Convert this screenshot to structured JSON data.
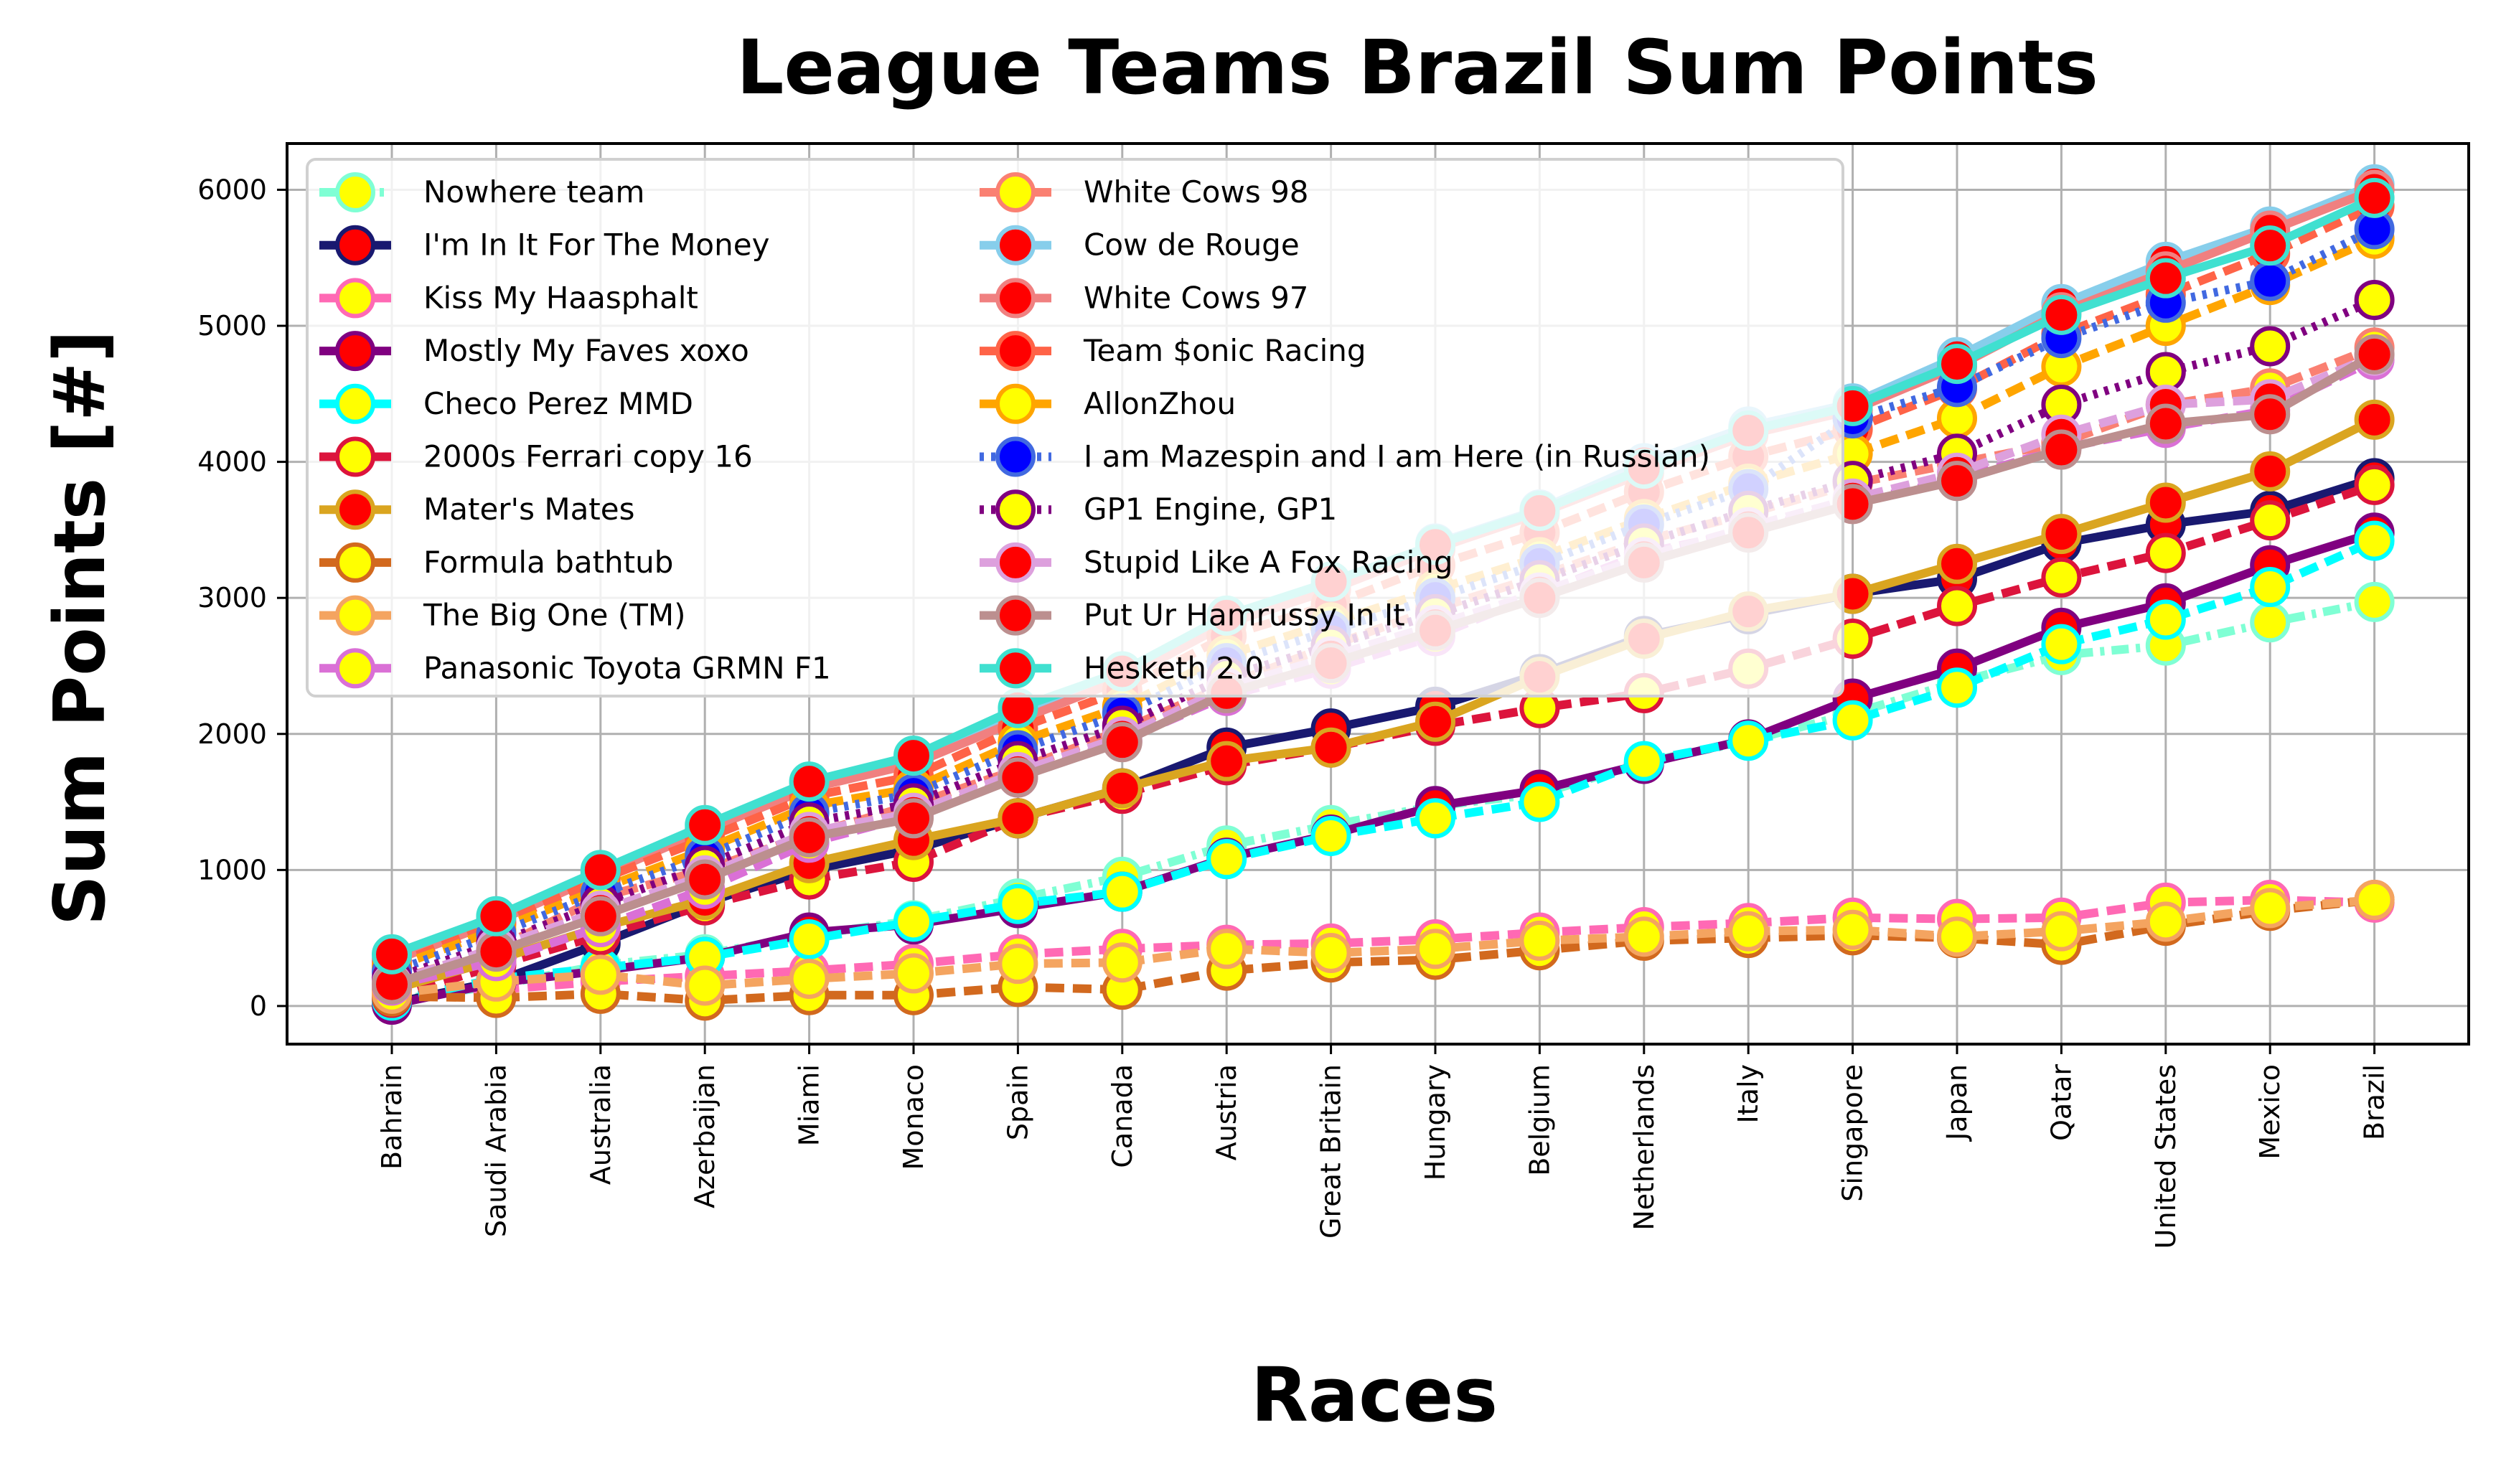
{
  "chart_data": {
    "type": "line",
    "title": "League Teams Brazil Sum Points",
    "xlabel": "Races",
    "ylabel": "Sum Points [#]",
    "ylim": [
      -280,
      6340
    ],
    "yticks": [
      0,
      1000,
      2000,
      3000,
      4000,
      5000,
      6000
    ],
    "grid": true,
    "legend": "upper-left, two columns",
    "categories": [
      "Bahrain",
      "Saudi Arabia",
      "Australia",
      "Azerbaijan",
      "Miami",
      "Monaco",
      "Spain",
      "Canada",
      "Austria",
      "Great Britain",
      "Hungary",
      "Belgium",
      "Netherlands",
      "Italy",
      "Singapore",
      "Japan",
      "Qatar",
      "United States",
      "Mexico",
      "Brazil"
    ],
    "series": [
      {
        "name": "Nowhere team",
        "color": "#7fffd4",
        "marker_face": "#ffff00",
        "marker_edge": "#7fffd4",
        "dash": "dashdot",
        "values": [
          40,
          150,
          300,
          380,
          520,
          630,
          790,
          950,
          1180,
          1330,
          1470,
          1560,
          1790,
          1950,
          2150,
          2380,
          2580,
          2650,
          2820,
          2970
        ]
      },
      {
        "name": "I'm In It For The Money",
        "color": "#191970",
        "marker_face": "#ff0000",
        "marker_edge": "#191970",
        "dash": "solid",
        "values": [
          20,
          180,
          460,
          760,
          1000,
          1150,
          1380,
          1600,
          1900,
          2040,
          2200,
          2440,
          2720,
          2880,
          3030,
          3140,
          3400,
          3540,
          3640,
          3880
        ]
      },
      {
        "name": "Kiss My Haasphalt",
        "color": "#ff69b4",
        "marker_face": "#ffff00",
        "marker_edge": "#ff69b4",
        "dash": "dashed",
        "values": [
          50,
          120,
          180,
          220,
          260,
          310,
          380,
          420,
          450,
          460,
          490,
          540,
          580,
          610,
          650,
          640,
          650,
          760,
          780,
          760
        ]
      },
      {
        "name": "Mostly My Faves xoxo",
        "color": "#800080",
        "marker_face": "#ff0000",
        "marker_edge": "#800080",
        "dash": "solid",
        "values": [
          10,
          170,
          260,
          360,
          540,
          600,
          720,
          840,
          1090,
          1260,
          1470,
          1590,
          1780,
          1960,
          2260,
          2480,
          2780,
          2960,
          3240,
          3480
        ]
      },
      {
        "name": "Checo Perez MMD",
        "color": "#00ffff",
        "marker_face": "#ffff00",
        "marker_edge": "#00ffff",
        "dash": "dashed",
        "values": [
          40,
          200,
          280,
          360,
          490,
          620,
          750,
          840,
          1080,
          1250,
          1380,
          1500,
          1800,
          1950,
          2100,
          2340,
          2660,
          2840,
          3080,
          3420
        ]
      },
      {
        "name": "2000s Ferrari copy 16",
        "color": "#dc143c",
        "marker_face": "#ffff00",
        "marker_edge": "#dc143c",
        "dash": "dashed",
        "values": [
          60,
          300,
          520,
          740,
          930,
          1060,
          1380,
          1560,
          1770,
          1900,
          2060,
          2190,
          2300,
          2480,
          2700,
          2940,
          3150,
          3330,
          3570,
          3830
        ]
      },
      {
        "name": "Mater's Mates",
        "color": "#daa520",
        "marker_face": "#ff0000",
        "marker_edge": "#daa520",
        "dash": "solid",
        "values": [
          120,
          340,
          580,
          780,
          1050,
          1220,
          1380,
          1600,
          1800,
          1900,
          2090,
          2420,
          2700,
          2900,
          3030,
          3250,
          3470,
          3700,
          3930,
          4310
        ]
      },
      {
        "name": "Formula bathtub",
        "color": "#d2691e",
        "marker_face": "#ffff00",
        "marker_edge": "#d2691e",
        "dash": "dashed",
        "values": [
          70,
          60,
          90,
          40,
          80,
          80,
          140,
          120,
          260,
          320,
          340,
          410,
          480,
          500,
          520,
          500,
          450,
          590,
          700,
          780
        ]
      },
      {
        "name": "The Big One (TM)",
        "color": "#f4a460",
        "marker_face": "#ffff00",
        "marker_edge": "#f4a460",
        "dash": "dashed",
        "values": [
          90,
          180,
          230,
          150,
          200,
          240,
          310,
          320,
          420,
          390,
          420,
          480,
          510,
          550,
          560,
          510,
          550,
          620,
          720,
          780
        ]
      },
      {
        "name": "Panasonic Toyota GRMN F1",
        "color": "#da70d6",
        "marker_face": "#ffff00",
        "marker_edge": "#da70d6",
        "dash": "dashed",
        "values": [
          150,
          330,
          580,
          860,
          1200,
          1400,
          1680,
          1950,
          2280,
          2480,
          2720,
          3030,
          3330,
          3490,
          3700,
          3870,
          4100,
          4250,
          4380,
          4750
        ]
      },
      {
        "name": "White Cows 98",
        "color": "#fa8072",
        "marker_face": "#ffff00",
        "marker_edge": "#fa8072",
        "dash": "dashed",
        "values": [
          180,
          420,
          800,
          1000,
          1260,
          1480,
          1740,
          2030,
          2360,
          2650,
          2920,
          3160,
          3420,
          3620,
          3840,
          3990,
          4140,
          4420,
          4540,
          4840
        ]
      },
      {
        "name": "Cow de Rouge",
        "color": "#87ceeb",
        "marker_face": "#ff0000",
        "marker_edge": "#87ceeb",
        "dash": "solid",
        "values": [
          350,
          640,
          980,
          1300,
          1640,
          1800,
          2160,
          2430,
          2830,
          3090,
          3400,
          3650,
          3990,
          4260,
          4430,
          4770,
          5160,
          5470,
          5730,
          6040
        ]
      },
      {
        "name": "White Cows 97",
        "color": "#f08080",
        "marker_face": "#ff0000",
        "marker_edge": "#f08080",
        "dash": "solid",
        "values": [
          330,
          620,
          960,
          1290,
          1600,
          1780,
          2100,
          2400,
          2810,
          3060,
          3360,
          3620,
          3920,
          4200,
          4380,
          4700,
          5100,
          5400,
          5700,
          6000
        ]
      },
      {
        "name": "Team $onic Racing",
        "color": "#ff6347",
        "marker_face": "#ff0000",
        "marker_edge": "#ff6347",
        "dash": "dashed",
        "values": [
          300,
          600,
          930,
          1230,
          1540,
          1690,
          2040,
          2320,
          2720,
          2950,
          3240,
          3480,
          3780,
          4040,
          4240,
          4540,
          4940,
          5230,
          5530,
          5880
        ]
      },
      {
        "name": "AllonZhou",
        "color": "#ffa500",
        "marker_face": "#ffff00",
        "marker_edge": "#ffa500",
        "dash": "dashed",
        "values": [
          280,
          560,
          860,
          1150,
          1470,
          1600,
          1940,
          2200,
          2580,
          2820,
          3060,
          3300,
          3580,
          3840,
          4060,
          4320,
          4700,
          5000,
          5300,
          5640
        ]
      },
      {
        "name": "I am Mazespin and I am Here (in Russian)",
        "color": "#4169e1",
        "marker_face": "#0000ff",
        "marker_edge": "#4169e1",
        "dash": "dotted",
        "values": [
          250,
          530,
          830,
          1100,
          1420,
          1560,
          1880,
          2150,
          2520,
          2760,
          3000,
          3250,
          3540,
          3800,
          4320,
          4550,
          4910,
          5170,
          5330,
          5710
        ]
      },
      {
        "name": "GP1 Engine, GP1",
        "color": "#800080",
        "marker_face": "#ffff00",
        "marker_edge": "#800080",
        "dash": "dotted",
        "values": [
          200,
          460,
          750,
          1030,
          1350,
          1490,
          1800,
          2060,
          2420,
          2650,
          2880,
          3130,
          3400,
          3640,
          3860,
          4060,
          4420,
          4660,
          4850,
          5190
        ]
      },
      {
        "name": "Stupid Like A Fox Racing",
        "color": "#dda0dd",
        "marker_face": "#ff0000",
        "marker_edge": "#dda0dd",
        "dash": "dashed",
        "values": [
          170,
          430,
          700,
          960,
          1280,
          1420,
          1720,
          1980,
          2340,
          2570,
          2800,
          3040,
          3300,
          3520,
          3730,
          3920,
          4200,
          4420,
          4460,
          4780
        ]
      },
      {
        "name": "Put Ur Hamrussy In It",
        "color": "#bc8f8f",
        "marker_face": "#ff0000",
        "marker_edge": "#bc8f8f",
        "dash": "solid",
        "values": [
          160,
          400,
          660,
          930,
          1240,
          1380,
          1680,
          1940,
          2300,
          2520,
          2760,
          3000,
          3260,
          3480,
          3690,
          3860,
          4090,
          4280,
          4350,
          4790
        ]
      },
      {
        "name": "Hesketh 2.0",
        "color": "#40e0d0",
        "marker_face": "#ff0000",
        "marker_edge": "#40e0d0",
        "dash": "solid",
        "values": [
          380,
          660,
          1000,
          1330,
          1650,
          1840,
          2190,
          2460,
          2870,
          3120,
          3390,
          3640,
          3950,
          4230,
          4410,
          4720,
          5080,
          5350,
          5590,
          5940
        ]
      }
    ]
  }
}
